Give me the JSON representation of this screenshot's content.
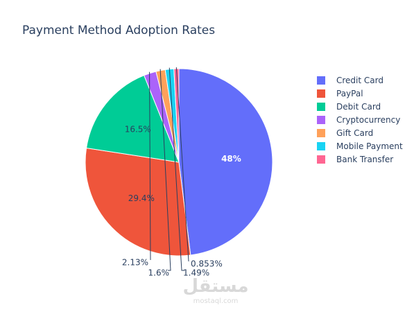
{
  "chart_data": {
    "type": "pie",
    "title": "Payment Method Adoption Rates",
    "slices": [
      {
        "name": "Credit Card",
        "value": 48,
        "label": "48%",
        "color": "#636efa"
      },
      {
        "name": "PayPal",
        "value": 29.4,
        "label": "29.4%",
        "color": "#ef553b"
      },
      {
        "name": "Debit Card",
        "value": 16.5,
        "label": "16.5%",
        "color": "#00cc96"
      },
      {
        "name": "Cryptocurrency",
        "value": 2.13,
        "label": "2.13%",
        "color": "#ab63fa"
      },
      {
        "name": "Gift Card",
        "value": 1.6,
        "label": "1.6%",
        "color": "#ffa15a"
      },
      {
        "name": "Mobile Payment",
        "value": 1.49,
        "label": "1.49%",
        "color": "#19d3f3"
      },
      {
        "name": "Bank Transfer",
        "value": 0.853,
        "label": "0.853%",
        "color": "#ff6692"
      }
    ],
    "legend_position": "right"
  },
  "watermark": {
    "arabic": "مستقل",
    "latin": "mostaql.com"
  }
}
